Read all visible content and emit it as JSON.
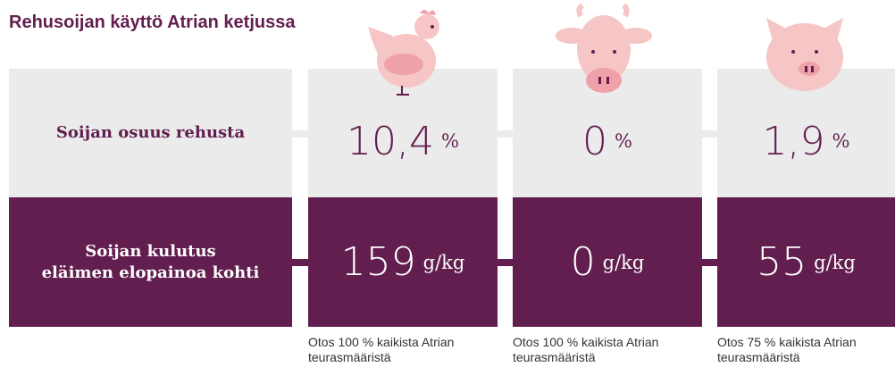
{
  "title": "Rehusoijan käyttö Atrian ketjussa",
  "rows": [
    {
      "label": [
        "Soijan osuus rehusta"
      ]
    },
    {
      "label": [
        "Soijan kulutus",
        "eläimen elopainoa kohti"
      ]
    }
  ],
  "columns": [
    {
      "share": "10,4",
      "share_unit": "%",
      "use": "159",
      "use_unit": "g/kg",
      "note": [
        "Otos 100 % kaikista Atrian",
        "teurasmääristä"
      ]
    },
    {
      "share": "0",
      "share_unit": "%",
      "use": "0",
      "use_unit": "g/kg",
      "note": [
        "Otos 100 % kaikista Atrian",
        "teurasmääristä"
      ]
    },
    {
      "share": "1,9",
      "share_unit": "%",
      "use": "55",
      "use_unit": "g/kg",
      "note": [
        "Otos 75 % kaikista Atrian",
        "teurasmääristä"
      ]
    }
  ]
}
